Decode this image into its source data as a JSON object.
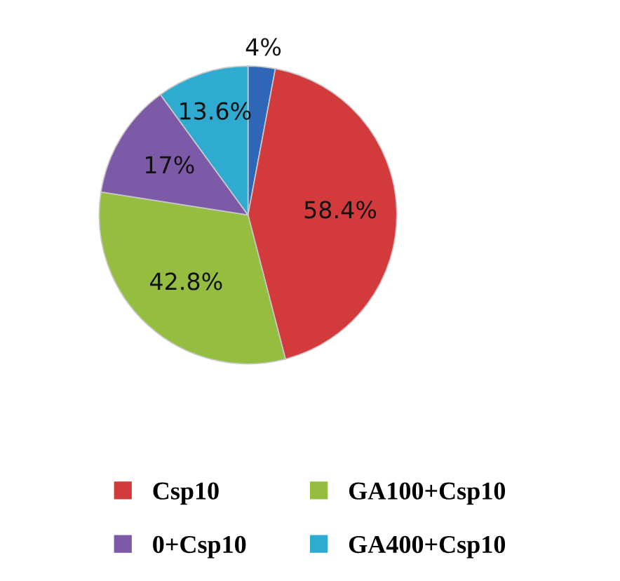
{
  "chart_data": {
    "type": "pie",
    "categories": [
      null,
      "Csp10",
      "GA100+Csp10",
      "0+Csp10",
      "GA400+Csp10"
    ],
    "values": [
      4,
      58.4,
      42.8,
      17,
      13.6
    ],
    "value_labels": [
      "4%",
      "58.4%",
      "42.8%",
      "17%",
      "13.6%"
    ],
    "colors": [
      "#2f66b8",
      "#d23a3c",
      "#95bd3f",
      "#7d5aa8",
      "#2fabd2"
    ],
    "legend": "bottom"
  }
}
